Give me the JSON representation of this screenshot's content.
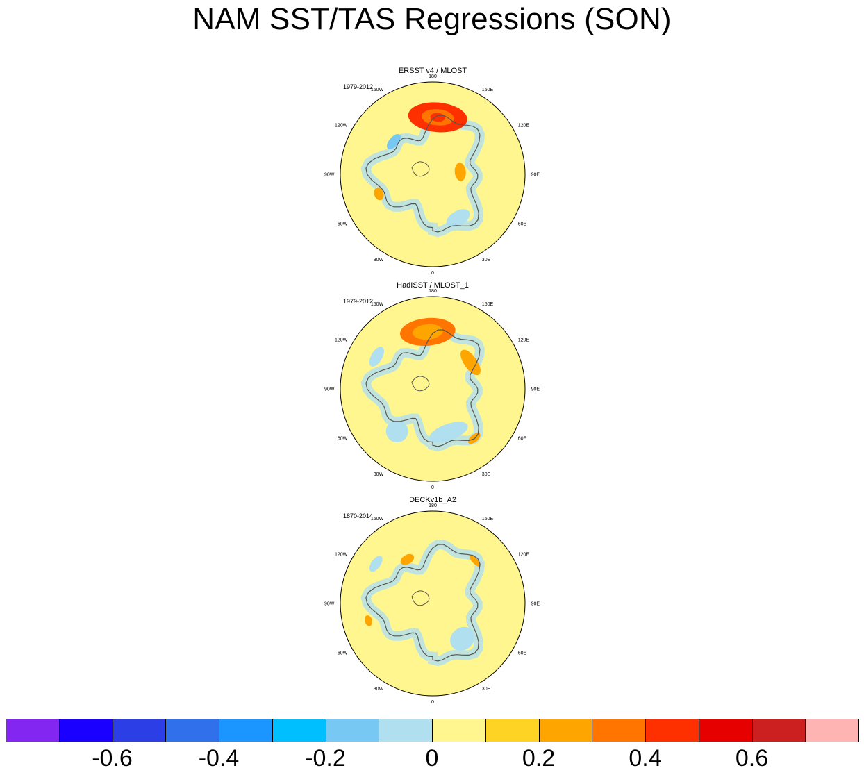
{
  "title": "NAM SST/TAS Regressions (SON)",
  "panels": [
    {
      "title": "ERSST v4 / MLOST",
      "period": "1979-2012",
      "features": [
        {
          "kind": "warm",
          "lon": 175,
          "r": 0.62,
          "rx": 0.32,
          "ry": 0.16,
          "level": 0.4
        },
        {
          "kind": "warm",
          "lon": 95,
          "r": 0.3,
          "rx": 0.1,
          "ry": 0.06,
          "level": 0.2
        },
        {
          "kind": "cool",
          "lon": -130,
          "r": 0.55,
          "rx": 0.1,
          "ry": 0.05,
          "level": -0.2
        },
        {
          "kind": "cool",
          "lon": 30,
          "r": 0.55,
          "rx": 0.14,
          "ry": 0.08,
          "level": 0
        },
        {
          "kind": "warm",
          "lon": -70,
          "r": 0.62,
          "rx": 0.07,
          "ry": 0.05,
          "level": 0.2
        }
      ]
    },
    {
      "title": "HadISST / MLOST_1",
      "period": "1979-2012",
      "features": [
        {
          "kind": "warm",
          "lon": -175,
          "r": 0.62,
          "rx": 0.3,
          "ry": 0.15,
          "level": 0.3
        },
        {
          "kind": "warm",
          "lon": 125,
          "r": 0.5,
          "rx": 0.16,
          "ry": 0.07,
          "level": 0.2
        },
        {
          "kind": "cool",
          "lon": -120,
          "r": 0.7,
          "rx": 0.12,
          "ry": 0.06,
          "level": 0
        },
        {
          "kind": "cool",
          "lon": 20,
          "r": 0.5,
          "rx": 0.22,
          "ry": 0.09,
          "level": 0
        },
        {
          "kind": "cool",
          "lon": -40,
          "r": 0.6,
          "rx": 0.12,
          "ry": 0.12,
          "level": 0
        },
        {
          "kind": "warm",
          "lon": 40,
          "r": 0.7,
          "rx": 0.08,
          "ry": 0.04,
          "level": 0.2
        }
      ]
    },
    {
      "title": "DECKv1b_A2",
      "period": "1870-2014",
      "features": [
        {
          "kind": "warm",
          "lon": -150,
          "r": 0.55,
          "rx": 0.08,
          "ry": 0.05,
          "level": 0.2
        },
        {
          "kind": "warm",
          "lon": 135,
          "r": 0.65,
          "rx": 0.08,
          "ry": 0.03,
          "level": 0.2
        },
        {
          "kind": "cool",
          "lon": 40,
          "r": 0.5,
          "rx": 0.14,
          "ry": 0.12,
          "level": 0
        },
        {
          "kind": "cool",
          "lon": -125,
          "r": 0.75,
          "rx": 0.1,
          "ry": 0.05,
          "level": 0
        },
        {
          "kind": "warm",
          "lon": -75,
          "r": 0.72,
          "rx": 0.06,
          "ry": 0.04,
          "level": 0.2
        }
      ]
    }
  ],
  "longitude_labels": [
    {
      "text": "180",
      "lon": 180
    },
    {
      "text": "150E",
      "lon": 150
    },
    {
      "text": "120E",
      "lon": 120
    },
    {
      "text": "90E",
      "lon": 90
    },
    {
      "text": "60E",
      "lon": 60
    },
    {
      "text": "30E",
      "lon": 30
    },
    {
      "text": "0",
      "lon": 0
    },
    {
      "text": "30W",
      "lon": -30
    },
    {
      "text": "60W",
      "lon": -60
    },
    {
      "text": "90W",
      "lon": -90
    },
    {
      "text": "120W",
      "lon": -120
    },
    {
      "text": "150W",
      "lon": -150
    }
  ],
  "colors": {
    "land_outline": "#555555",
    "map_background": "#fff68f",
    "cool_light": "#b0e0f0",
    "warm_mid": "#ffd324",
    "warm_strong": "#ffa500",
    "warm_stronger": "#ff7500",
    "warm_max": "#ff3000"
  },
  "colorbar": {
    "colors": [
      "#8426f2",
      "#1900ff",
      "#2c3fe6",
      "#3070ea",
      "#1b95ff",
      "#00bfff",
      "#77c9f3",
      "#b0e0f0",
      "#fff68f",
      "#ffd324",
      "#ffa500",
      "#ff7500",
      "#ff3000",
      "#e60000",
      "#cc1f1f",
      "#ffb4b4"
    ],
    "labels": [
      {
        "text": "-0.6",
        "boundary": 2
      },
      {
        "text": "-0.4",
        "boundary": 4
      },
      {
        "text": "-0.2",
        "boundary": 6
      },
      {
        "text": "0",
        "boundary": 8
      },
      {
        "text": "0.2",
        "boundary": 10
      },
      {
        "text": "0.4",
        "boundary": 12
      },
      {
        "text": "0.6",
        "boundary": 14
      }
    ]
  }
}
